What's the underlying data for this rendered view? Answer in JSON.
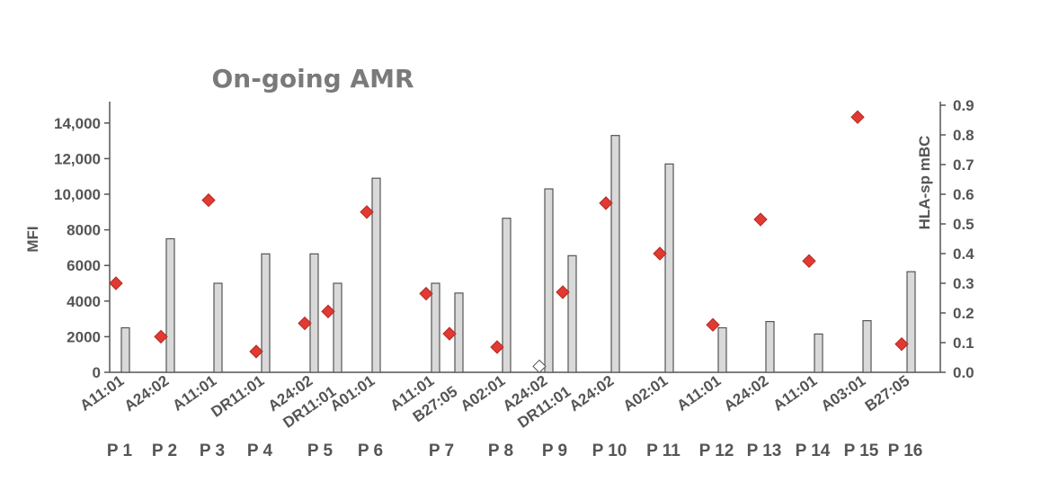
{
  "chart_data": {
    "type": "bar",
    "title": "On-going AMR",
    "ylabel_left": "MFI",
    "ylabel_right": "HLA-sp mBC",
    "ylim_left": [
      0,
      15000
    ],
    "ylim_right": [
      0,
      0.9
    ],
    "yticks_left": [
      "0",
      "2000",
      "4000",
      "6000",
      "8000",
      "10,000",
      "12,000",
      "14,000"
    ],
    "yticks_right": [
      "0.0",
      "0.1",
      "0.2",
      "0.3",
      "0.4",
      "0.5",
      "0.6",
      "0.7",
      "0.8",
      "0.9"
    ],
    "colors": {
      "bar_fill": "#d9d9d9",
      "bar_stroke": "#555555",
      "diamond_fill": "#e03a32",
      "diamond_open": "#ffffff",
      "axis": "#555555"
    },
    "patients": [
      {
        "label": "P 1",
        "antigens": [
          {
            "name": "A11:01",
            "mfi": 2500,
            "mbc": 0.3
          }
        ]
      },
      {
        "label": "P 2",
        "antigens": [
          {
            "name": "A24:02",
            "mfi": 7500,
            "mbc": 0.12
          }
        ]
      },
      {
        "label": "P 3",
        "antigens": [
          {
            "name": "A11:01",
            "mfi": 5000,
            "mbc": 0.58
          }
        ]
      },
      {
        "label": "P 4",
        "antigens": [
          {
            "name": "DR11:01",
            "mfi": 6650,
            "mbc": 0.07
          }
        ]
      },
      {
        "label": "P 5",
        "antigens": [
          {
            "name": "A24:02",
            "mfi": 6650,
            "mbc": 0.165
          },
          {
            "name": "DR11:01",
            "mfi": 5000,
            "mbc": 0.205
          }
        ]
      },
      {
        "label": "P 6",
        "antigens": [
          {
            "name": "A01:01",
            "mfi": 10900,
            "mbc": 0.54
          }
        ]
      },
      {
        "label": "P 7",
        "antigens": [
          {
            "name": "A11:01",
            "mfi": 5000,
            "mbc": 0.265
          },
          {
            "name": "B27:05",
            "mfi": 4450,
            "mbc": 0.13
          }
        ]
      },
      {
        "label": "P 8",
        "antigens": [
          {
            "name": "A02:01",
            "mfi": 8650,
            "mbc": 0.085
          }
        ]
      },
      {
        "label": "P 9",
        "antigens": [
          {
            "name": "A24:02",
            "mfi": 10300,
            "mbc": 0.02,
            "open": true
          },
          {
            "name": "DR11:01",
            "mfi": 6550,
            "mbc": 0.27
          }
        ]
      },
      {
        "label": "P 10",
        "antigens": [
          {
            "name": "A24:02",
            "mfi": 13300,
            "mbc": 0.57
          }
        ]
      },
      {
        "label": "P 11",
        "antigens": [
          {
            "name": "A02:01",
            "mfi": 11700,
            "mbc": 0.4
          }
        ]
      },
      {
        "label": "P 12",
        "antigens": [
          {
            "name": "A11:01",
            "mfi": 2500,
            "mbc": 0.16
          }
        ]
      },
      {
        "label": "P 13",
        "antigens": [
          {
            "name": "A24:02",
            "mfi": 2850,
            "mbc": 0.515
          }
        ]
      },
      {
        "label": "P 14",
        "antigens": [
          {
            "name": "A11:01",
            "mfi": 2150,
            "mbc": 0.375
          }
        ]
      },
      {
        "label": "P 15",
        "antigens": [
          {
            "name": "A03:01",
            "mfi": 2900,
            "mbc": 0.86
          }
        ]
      },
      {
        "label": "P 16",
        "antigens": [
          {
            "name": "B27:05",
            "mfi": 5650,
            "mbc": 0.095
          }
        ]
      }
    ]
  }
}
